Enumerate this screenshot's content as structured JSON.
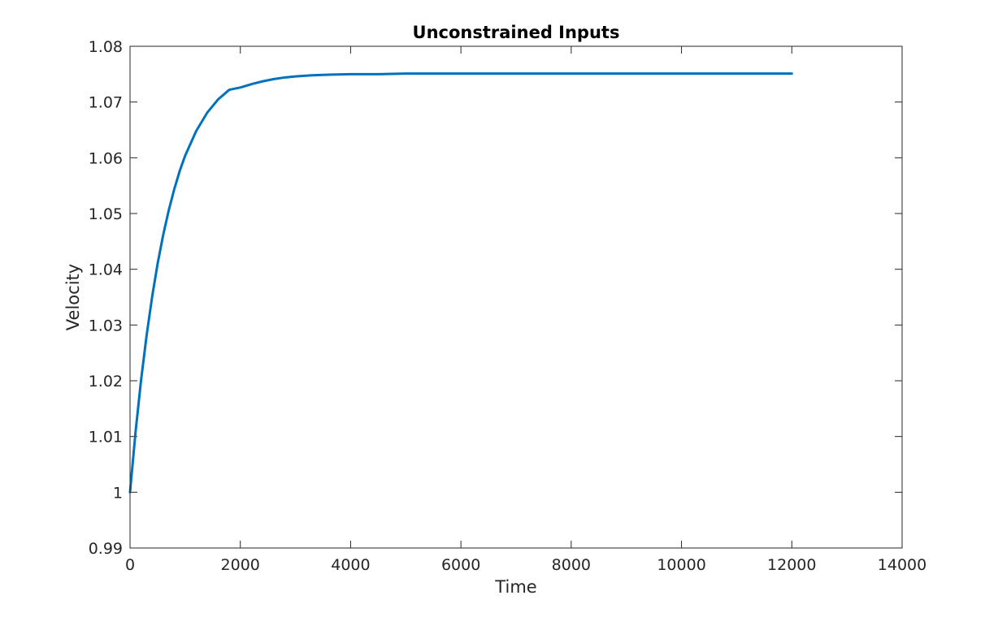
{
  "chart_data": {
    "type": "line",
    "title": "Unconstrained Inputs",
    "xlabel": "Time",
    "ylabel": "Velocity",
    "xlim": [
      0,
      14000
    ],
    "ylim": [
      0.99,
      1.08
    ],
    "xticks": [
      0,
      2000,
      4000,
      6000,
      8000,
      10000,
      12000,
      14000
    ],
    "xtick_labels": [
      "0",
      "2000",
      "4000",
      "6000",
      "8000",
      "10000",
      "12000",
      "14000"
    ],
    "yticks": [
      0.99,
      1.0,
      1.01,
      1.02,
      1.03,
      1.04,
      1.05,
      1.06,
      1.07,
      1.08
    ],
    "ytick_labels": [
      "0.99",
      "1",
      "1.01",
      "1.02",
      "1.03",
      "1.04",
      "1.05",
      "1.06",
      "1.07",
      "1.08"
    ],
    "grid": false,
    "series": [
      {
        "name": "Velocity",
        "color": "#0072BD",
        "x": [
          0,
          100,
          200,
          300,
          400,
          500,
          600,
          700,
          800,
          900,
          1000,
          1200,
          1400,
          1600,
          1800,
          2000,
          2200,
          2400,
          2600,
          2800,
          3000,
          3300,
          3600,
          4000,
          4500,
          5000,
          6000,
          7000,
          8000,
          9000,
          10000,
          11000,
          12000
        ],
        "y": [
          1.0,
          1.0108,
          1.0201,
          1.0281,
          1.035,
          1.041,
          1.0461,
          1.0505,
          1.0543,
          1.0576,
          1.0604,
          1.0648,
          1.0681,
          1.0705,
          1.0722,
          1.0726,
          1.0732,
          1.0737,
          1.0741,
          1.0744,
          1.0746,
          1.0748,
          1.0749,
          1.075,
          1.075,
          1.0751,
          1.0751,
          1.0751,
          1.0751,
          1.0751,
          1.0751,
          1.0751,
          1.0751
        ]
      }
    ]
  }
}
